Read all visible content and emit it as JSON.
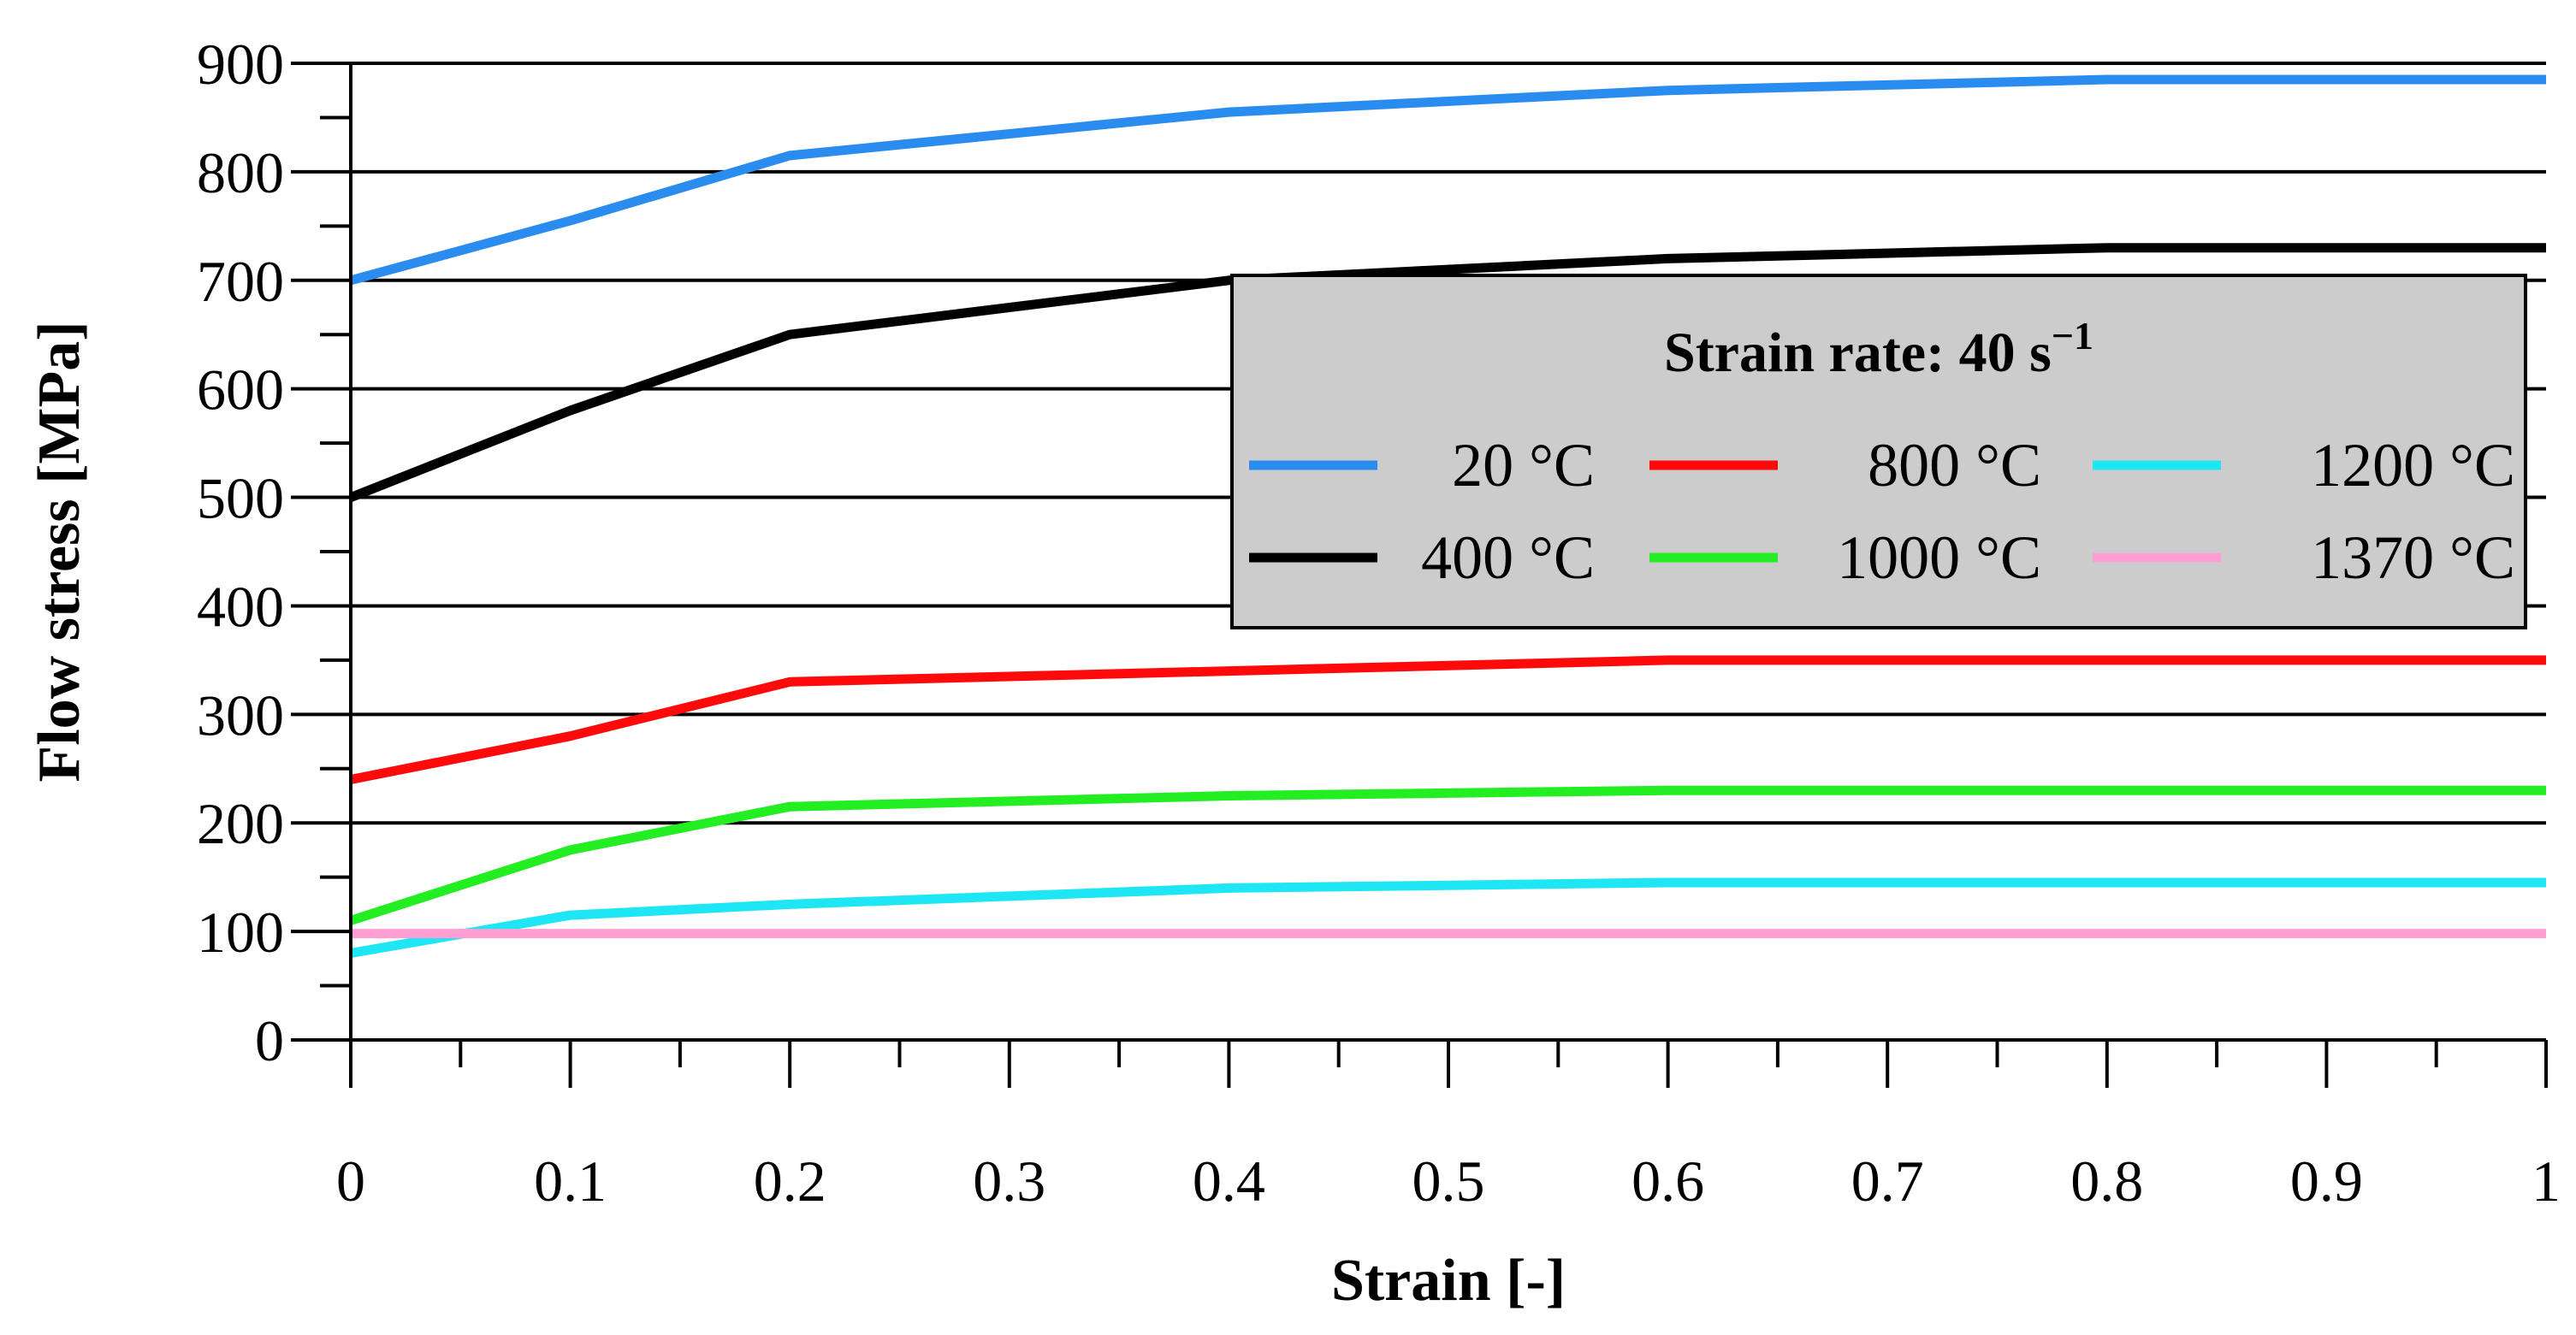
{
  "chart_data": {
    "type": "line",
    "title": "",
    "xlabel": "Strain [-]",
    "ylabel": "Flow stress [MPa]",
    "xlim": [
      0,
      1
    ],
    "ylim": [
      0,
      900
    ],
    "x_ticks": [
      "0",
      "0.1",
      "0.2",
      "0.3",
      "0.4",
      "0.5",
      "0.6",
      "0.7",
      "0.8",
      "0.9",
      "1"
    ],
    "y_ticks": [
      "0",
      "100",
      "200",
      "300",
      "400",
      "500",
      "600",
      "700",
      "800",
      "900"
    ],
    "grid": "horizontal",
    "legend": {
      "title": "Strain rate: 40 s",
      "title_superscript": "−1",
      "placement": "upper-right"
    },
    "series": [
      {
        "name": "20 °C",
        "color": "#2b8cf0",
        "x": [
          0,
          0.1,
          0.2,
          0.4,
          0.6,
          0.8,
          1
        ],
        "y": [
          700,
          755,
          815,
          855,
          875,
          885,
          885
        ]
      },
      {
        "name": "400 °C",
        "color": "#000000",
        "x": [
          0,
          0.1,
          0.2,
          0.4,
          0.6,
          0.8,
          1
        ],
        "y": [
          500,
          580,
          650,
          700,
          720,
          730,
          730
        ]
      },
      {
        "name": "800 °C",
        "color": "#ff0a0a",
        "x": [
          0,
          0.1,
          0.2,
          0.4,
          0.6,
          0.8,
          1
        ],
        "y": [
          240,
          280,
          330,
          340,
          350,
          350,
          350
        ]
      },
      {
        "name": "1000 °C",
        "color": "#22ee22",
        "x": [
          0,
          0.1,
          0.2,
          0.4,
          0.6,
          0.8,
          1
        ],
        "y": [
          110,
          175,
          215,
          225,
          230,
          230,
          230
        ]
      },
      {
        "name": "1200 °C",
        "color": "#1ee6f5",
        "x": [
          0,
          0.1,
          0.2,
          0.4,
          0.6,
          0.8,
          1
        ],
        "y": [
          80,
          115,
          125,
          140,
          145,
          145,
          145
        ]
      },
      {
        "name": "1370 °C",
        "color": "#ff9ed2",
        "x": [
          0,
          0.1,
          0.2,
          0.4,
          0.6,
          0.8,
          1
        ],
        "y": [
          98,
          98,
          98,
          98,
          98,
          98,
          98
        ]
      }
    ]
  }
}
